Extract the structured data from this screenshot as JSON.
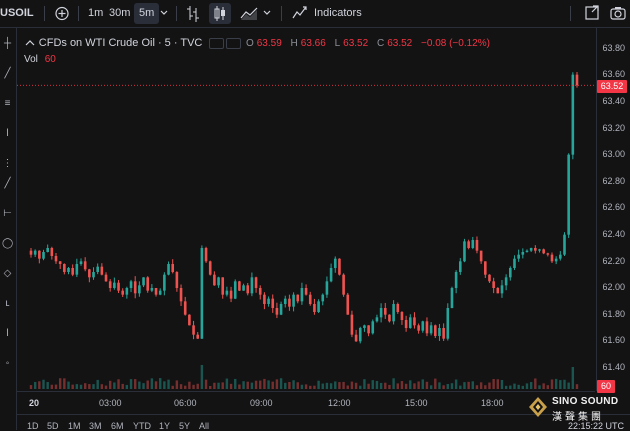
{
  "topbar": {
    "symbol": "USOIL",
    "add_icon": "plus-circle-icon",
    "intervals": [
      "1m",
      "30m",
      "5m"
    ],
    "active_interval": "5m",
    "indicators_label": "Indicators"
  },
  "legend": {
    "title": "CFDs on WTI Crude Oil · 5 · TVC",
    "open_label": "O",
    "open": "63.59",
    "high_label": "H",
    "high": "63.66",
    "low_label": "L",
    "low": "63.52",
    "close_label": "C",
    "close": "63.52",
    "change": "−0.08 (−0.12%)",
    "volume_label": "Vol",
    "volume": "60"
  },
  "price_axis": {
    "ticks": [
      "63.80",
      "63.60",
      "63.40",
      "63.20",
      "63.00",
      "62.80",
      "62.60",
      "62.40",
      "62.20",
      "62.00",
      "61.80",
      "61.60",
      "61.40"
    ],
    "current_price": "63.52",
    "volume_badge": "60"
  },
  "time_axis": {
    "ticks": [
      "20",
      "03:00",
      "06:00",
      "09:00",
      "12:00",
      "15:00",
      "18:00"
    ]
  },
  "bottombar": {
    "ranges": [
      "1D",
      "5D",
      "1M",
      "3M",
      "6M",
      "YTD",
      "1Y",
      "5Y",
      "All"
    ],
    "clock": "22:15:22 UTC"
  },
  "watermark": {
    "brand": "SINO SOUND",
    "brand_cn": "漢聲集團"
  },
  "colors": {
    "up": "#26a69a",
    "down": "#ef5350",
    "background": "#131314",
    "price_line": "#f23645"
  },
  "chart_data": {
    "type": "candlestick",
    "title": "CFDs on WTI Crude Oil · 5 · TVC",
    "ylim": [
      61.3,
      63.85
    ],
    "x_ticks": [
      "20",
      "03:00",
      "06:00",
      "09:00",
      "12:00",
      "15:00",
      "18:00"
    ],
    "close_series": [
      62.25,
      62.28,
      62.22,
      62.27,
      62.3,
      62.24,
      62.2,
      62.18,
      62.12,
      62.15,
      62.1,
      62.18,
      62.2,
      62.14,
      62.08,
      62.12,
      62.16,
      62.1,
      62.05,
      62.0,
      62.04,
      61.98,
      61.95,
      62.0,
      62.05,
      61.96,
      62.02,
      62.08,
      61.98,
      62.0,
      61.95,
      61.98,
      62.1,
      62.18,
      62.12,
      62.0,
      61.9,
      61.8,
      61.72,
      61.65,
      61.62,
      62.3,
      62.2,
      62.1,
      62.02,
      62.08,
      61.95,
      61.98,
      61.92,
      62.05,
      61.98,
      62.02,
      61.96,
      62.08,
      62.0,
      61.95,
      61.88,
      61.92,
      61.85,
      61.8,
      61.88,
      61.92,
      61.86,
      61.95,
      61.9,
      62.0,
      61.95,
      61.88,
      61.82,
      61.9,
      61.95,
      62.05,
      62.15,
      62.22,
      62.1,
      61.95,
      61.8,
      61.65,
      61.6,
      61.7,
      61.72,
      61.66,
      61.75,
      61.78,
      61.85,
      61.8,
      61.75,
      61.88,
      61.82,
      61.76,
      61.7,
      61.78,
      61.72,
      61.68,
      61.75,
      61.66,
      61.72,
      61.64,
      61.7,
      61.62,
      61.85,
      62.0,
      62.12,
      62.2,
      62.35,
      62.3,
      62.36,
      62.28,
      62.2,
      62.1,
      62.05,
      62.0,
      61.96,
      62.02,
      62.08,
      62.15,
      62.22,
      62.25,
      62.27,
      62.28,
      62.3,
      62.28,
      62.29,
      62.26,
      62.25,
      62.2,
      62.22,
      62.25,
      62.4,
      63.0,
      63.6,
      63.52
    ],
    "volume_last": 60
  }
}
